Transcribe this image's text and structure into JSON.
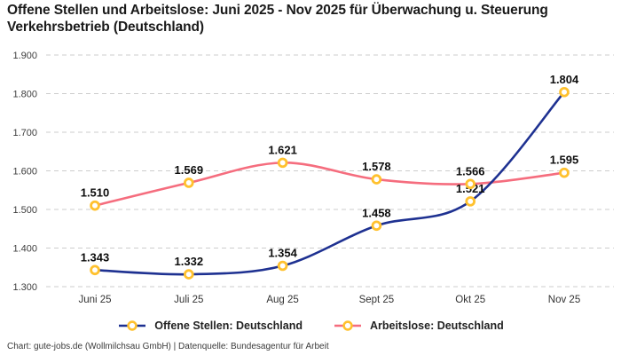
{
  "chart_data": {
    "type": "line",
    "title": "Offene Stellen und Arbeitslose: Juni 2025 - Nov 2025 für Überwachung u. Steuerung Verkehrsbetrieb (Deutschland)",
    "categories": [
      "Juni 25",
      "Juli 25",
      "Aug 25",
      "Sept 25",
      "Okt 25",
      "Nov 25"
    ],
    "series": [
      {
        "name": "Offene Stellen: Deutschland",
        "color": "#1e3191",
        "values": [
          1343,
          1332,
          1354,
          1458,
          1521,
          1804
        ],
        "labels": [
          "1.343",
          "1.332",
          "1.354",
          "1.458",
          "1.521",
          "1.804"
        ]
      },
      {
        "name": "Arbeitslose: Deutschland",
        "color": "#f56d7e",
        "values": [
          1510,
          1569,
          1621,
          1578,
          1566,
          1595
        ],
        "labels": [
          "1.510",
          "1.569",
          "1.621",
          "1.578",
          "1.566",
          "1.595"
        ]
      }
    ],
    "ylim": [
      1300,
      1900
    ],
    "ytick_step": 100,
    "ytick_labels": [
      "1.300",
      "1.400",
      "1.500",
      "1.600",
      "1.700",
      "1.800",
      "1.900"
    ],
    "marker_color": "#ffc12e",
    "grid_color": "#cccccc",
    "grid_style": "dashed",
    "axis_text_color": "#3d3d3d",
    "data_label_color": "#0d0d0d",
    "legend_position": "bottom"
  },
  "footer": {
    "text": "Chart: gute-jobs.de (Wollmilchsau GmbH) | Datenquelle: Bundesagentur für Arbeit"
  }
}
